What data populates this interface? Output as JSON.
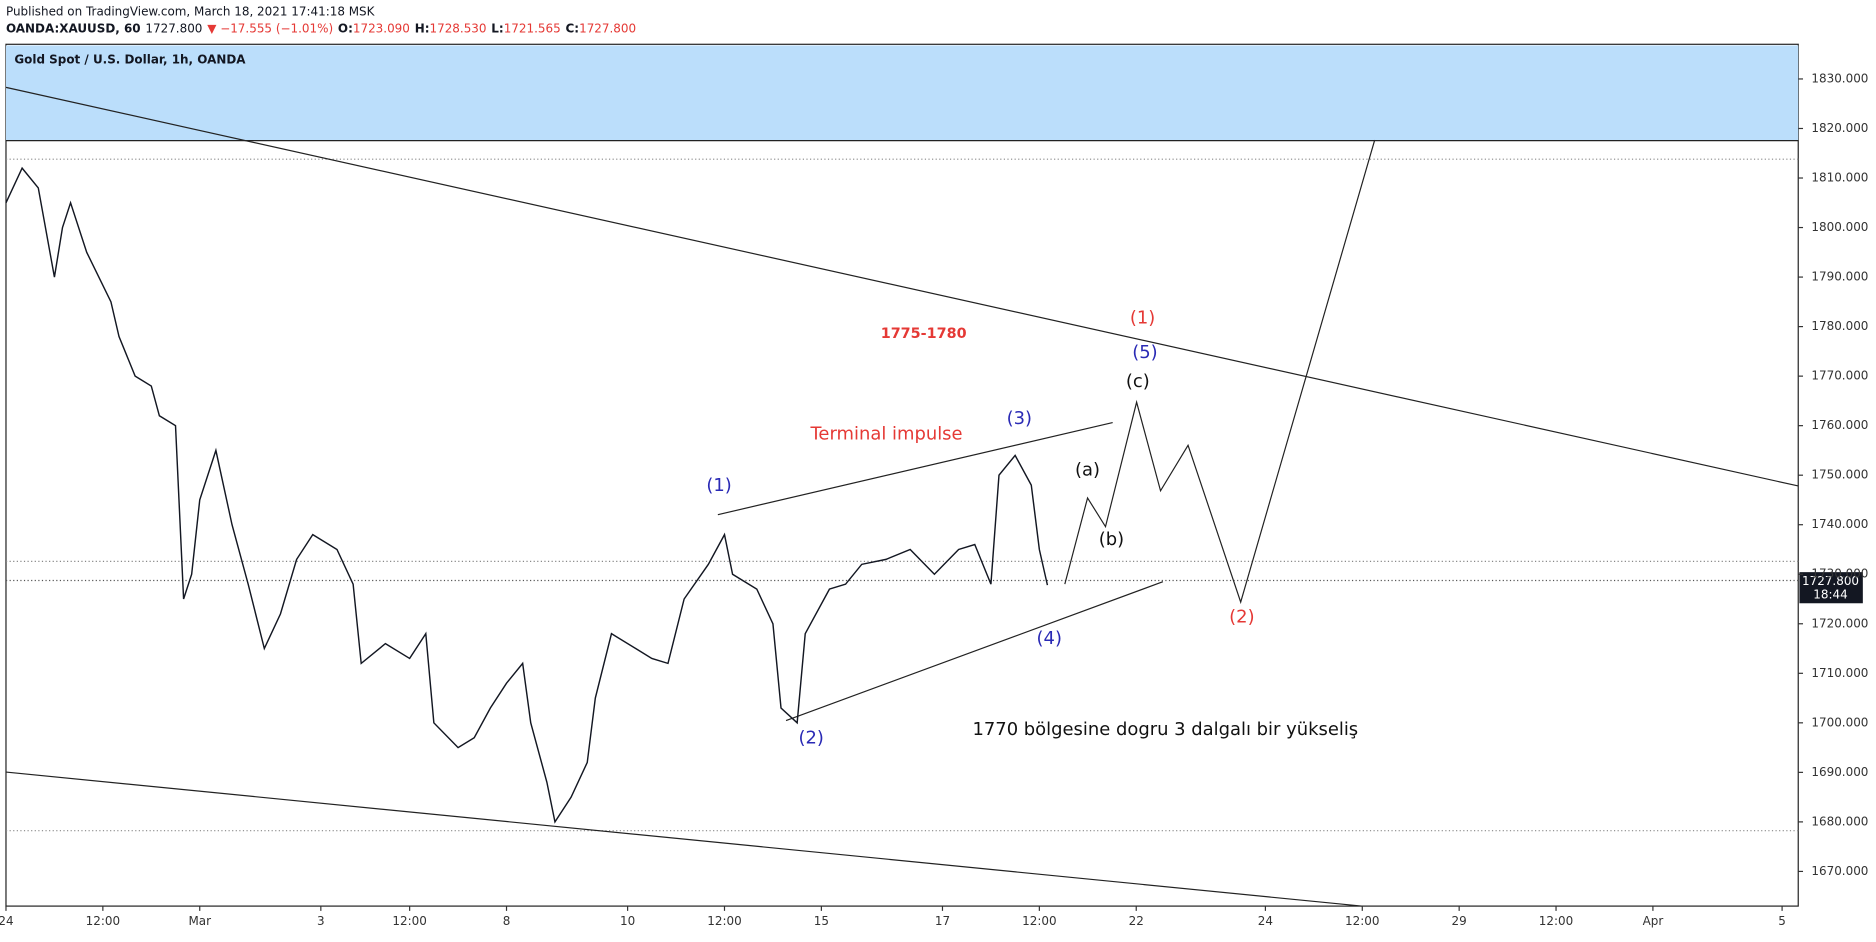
{
  "header": {
    "published": "Published on TradingView.com, March 18, 2021 17:41:18 MSK",
    "symbol": "OANDA:XAUUSD, 60",
    "last": "1727.800",
    "change": "▼ −17.555 (−1.01%)",
    "o_label": "O:",
    "o": "1723.090",
    "h_label": "H:",
    "h": "1728.530",
    "l_label": "L:",
    "l": "1721.565",
    "c_label": "C:",
    "c": "1727.800"
  },
  "chart_data": {
    "type": "line",
    "title": "Gold Spot / U.S. Dollar, 1h, OANDA",
    "color": "#131722",
    "x": [
      0,
      2,
      4,
      6,
      7,
      8,
      10,
      13,
      14,
      16,
      18,
      19,
      21,
      22,
      23,
      24,
      26,
      28,
      30,
      32,
      34,
      36,
      38,
      41,
      43,
      44,
      47,
      50,
      52,
      53,
      56,
      58,
      60,
      62,
      64,
      65,
      67,
      68,
      70,
      72,
      73,
      75,
      78,
      80,
      82,
      84,
      87,
      89,
      90,
      93,
      95,
      96,
      98,
      99,
      102,
      104,
      106,
      109,
      112,
      115,
      118,
      120,
      122,
      123,
      125,
      127,
      128,
      129
    ],
    "values": [
      1805,
      1812,
      1808,
      1790,
      1800,
      1805,
      1795,
      1785,
      1778,
      1770,
      1768,
      1762,
      1760,
      1725,
      1730,
      1745,
      1755,
      1740,
      1728,
      1715,
      1722,
      1733,
      1738,
      1735,
      1728,
      1712,
      1716,
      1713,
      1718,
      1700,
      1695,
      1697,
      1703,
      1708,
      1712,
      1700,
      1688,
      1680,
      1685,
      1692,
      1705,
      1718,
      1715,
      1713,
      1712,
      1725,
      1732,
      1738,
      1730,
      1727,
      1720,
      1703,
      1700,
      1718,
      1727,
      1728,
      1732,
      1733,
      1735,
      1730,
      1735,
      1736,
      1728,
      1750,
      1754,
      1748,
      1735,
      1727.8
    ],
    "xlim": [
      0,
      222
    ],
    "xticks": [
      {
        "value": 0,
        "label": "24"
      },
      {
        "value": 12,
        "label": "12:00"
      },
      {
        "value": 24,
        "label": "Mar"
      },
      {
        "value": 39,
        "label": "3"
      },
      {
        "value": 50,
        "label": "12:00"
      },
      {
        "value": 62,
        "label": "8"
      },
      {
        "value": 77,
        "label": "10"
      },
      {
        "value": 89,
        "label": "12:00"
      },
      {
        "value": 101,
        "label": "15"
      },
      {
        "value": 116,
        "label": "17"
      },
      {
        "value": 128,
        "label": "12:00"
      },
      {
        "value": 140,
        "label": "22"
      },
      {
        "value": 156,
        "label": "24"
      },
      {
        "value": 168,
        "label": "12:00"
      },
      {
        "value": 180,
        "label": "29"
      },
      {
        "value": 192,
        "label": "12:00"
      },
      {
        "value": 204,
        "label": "Apr"
      },
      {
        "value": 220,
        "label": "5"
      }
    ],
    "ylim": [
      1663,
      1837
    ],
    "yticks": [
      {
        "value": 1670,
        "label": "1670.000"
      },
      {
        "value": 1680,
        "label": "1680.000"
      },
      {
        "value": 1690,
        "label": "1690.000"
      },
      {
        "value": 1700,
        "label": "1700.000"
      },
      {
        "value": 1710,
        "label": "1710.000"
      },
      {
        "value": 1720,
        "label": "1720.000"
      },
      {
        "value": 1730,
        "label": "1730.000"
      },
      {
        "value": 1740,
        "label": "1740.000"
      },
      {
        "value": 1750,
        "label": "1750.000"
      },
      {
        "value": 1760,
        "label": "1760.000"
      },
      {
        "value": 1770,
        "label": "1770.000"
      },
      {
        "value": 1780,
        "label": "1780.000"
      },
      {
        "value": 1790,
        "label": "1790.000"
      },
      {
        "value": 1800,
        "label": "1800.000"
      },
      {
        "value": 1810,
        "label": "1810.000"
      },
      {
        "value": 1820,
        "label": "1820.000"
      },
      {
        "value": 1830,
        "label": "1830.000"
      }
    ],
    "price_label": "1727.800",
    "countdown": "18:44",
    "annotations": [
      "(1)",
      "(2)",
      "(3)",
      "(4)",
      "(5)",
      "(1)",
      "(2)",
      "(a)",
      "(b)",
      "(c)",
      "Terminal impulse",
      "1775-1780",
      "1770 bölgesine dogru 3 dalgalı bir yükseliş"
    ]
  }
}
